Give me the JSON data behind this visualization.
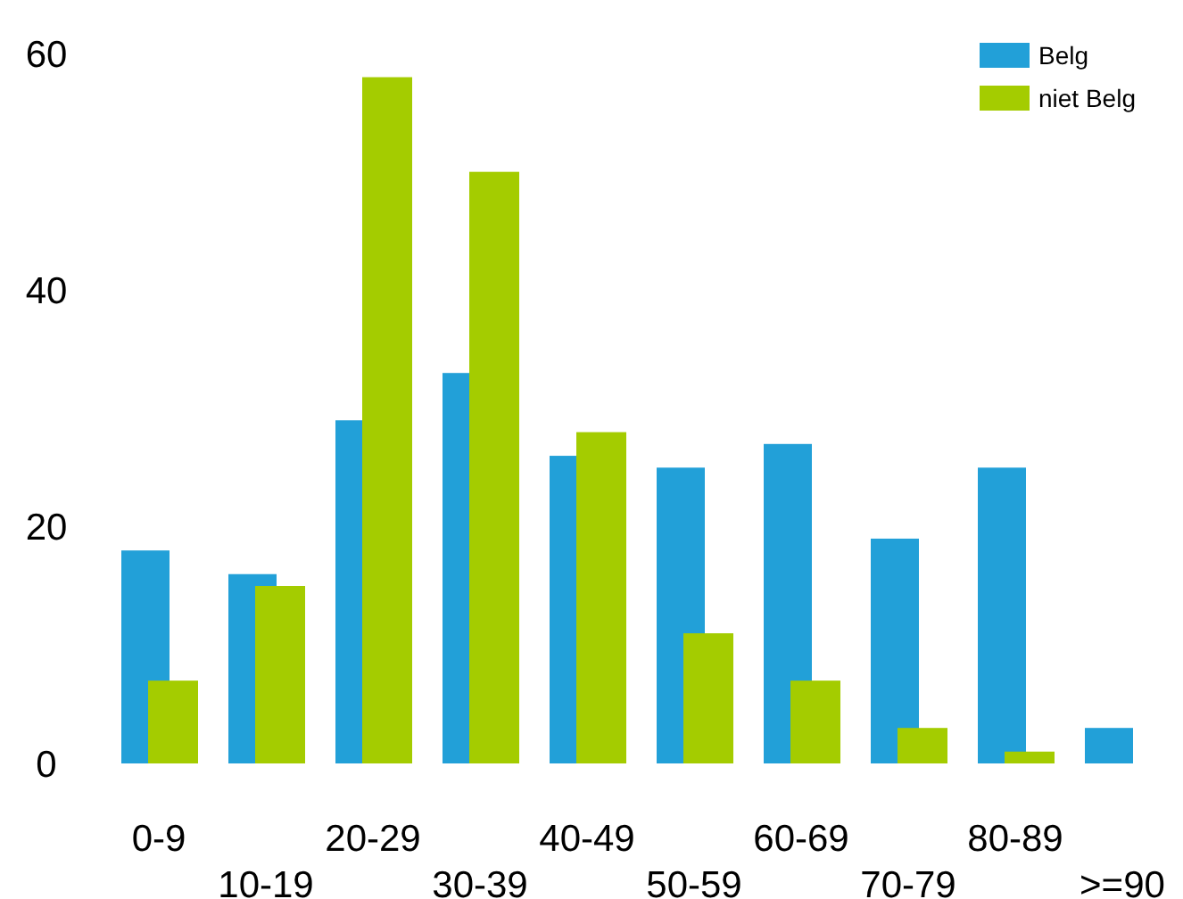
{
  "chart_data": {
    "type": "bar",
    "categories": [
      "0-9",
      "10-19",
      "20-29",
      "30-39",
      "40-49",
      "50-59",
      "60-69",
      "70-79",
      "80-89",
      ">=90"
    ],
    "series": [
      {
        "name": "Belg",
        "color": "#22a0d8",
        "values": [
          18,
          16,
          29,
          33,
          26,
          25,
          27,
          19,
          25,
          3
        ]
      },
      {
        "name": "niet Belg",
        "color": "#a4cc00",
        "values": [
          7,
          15,
          58,
          50,
          28,
          11,
          7,
          3,
          1,
          0
        ]
      }
    ],
    "ylim": [
      0,
      60
    ],
    "yticks": [
      0,
      20,
      40,
      60
    ],
    "grid": false,
    "legend": "top right"
  }
}
